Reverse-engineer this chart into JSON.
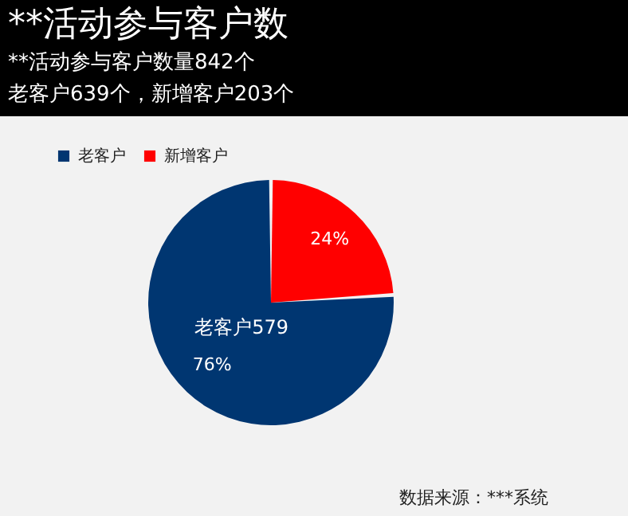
{
  "chart_data": {
    "type": "pie",
    "title": "**活动参与客户数",
    "subtitle": "**活动参与客户数量842个",
    "categories": [
      "老客户",
      "新增客户"
    ],
    "values": [
      76,
      24
    ],
    "colors": [
      "#003671",
      "#ff0000"
    ],
    "value_labels": [
      "76%",
      "24%"
    ],
    "legend": "top left",
    "annotations": [
      "老客户639个，新增客户203个",
      "老客户579",
      "数据来源：***系统"
    ]
  }
}
